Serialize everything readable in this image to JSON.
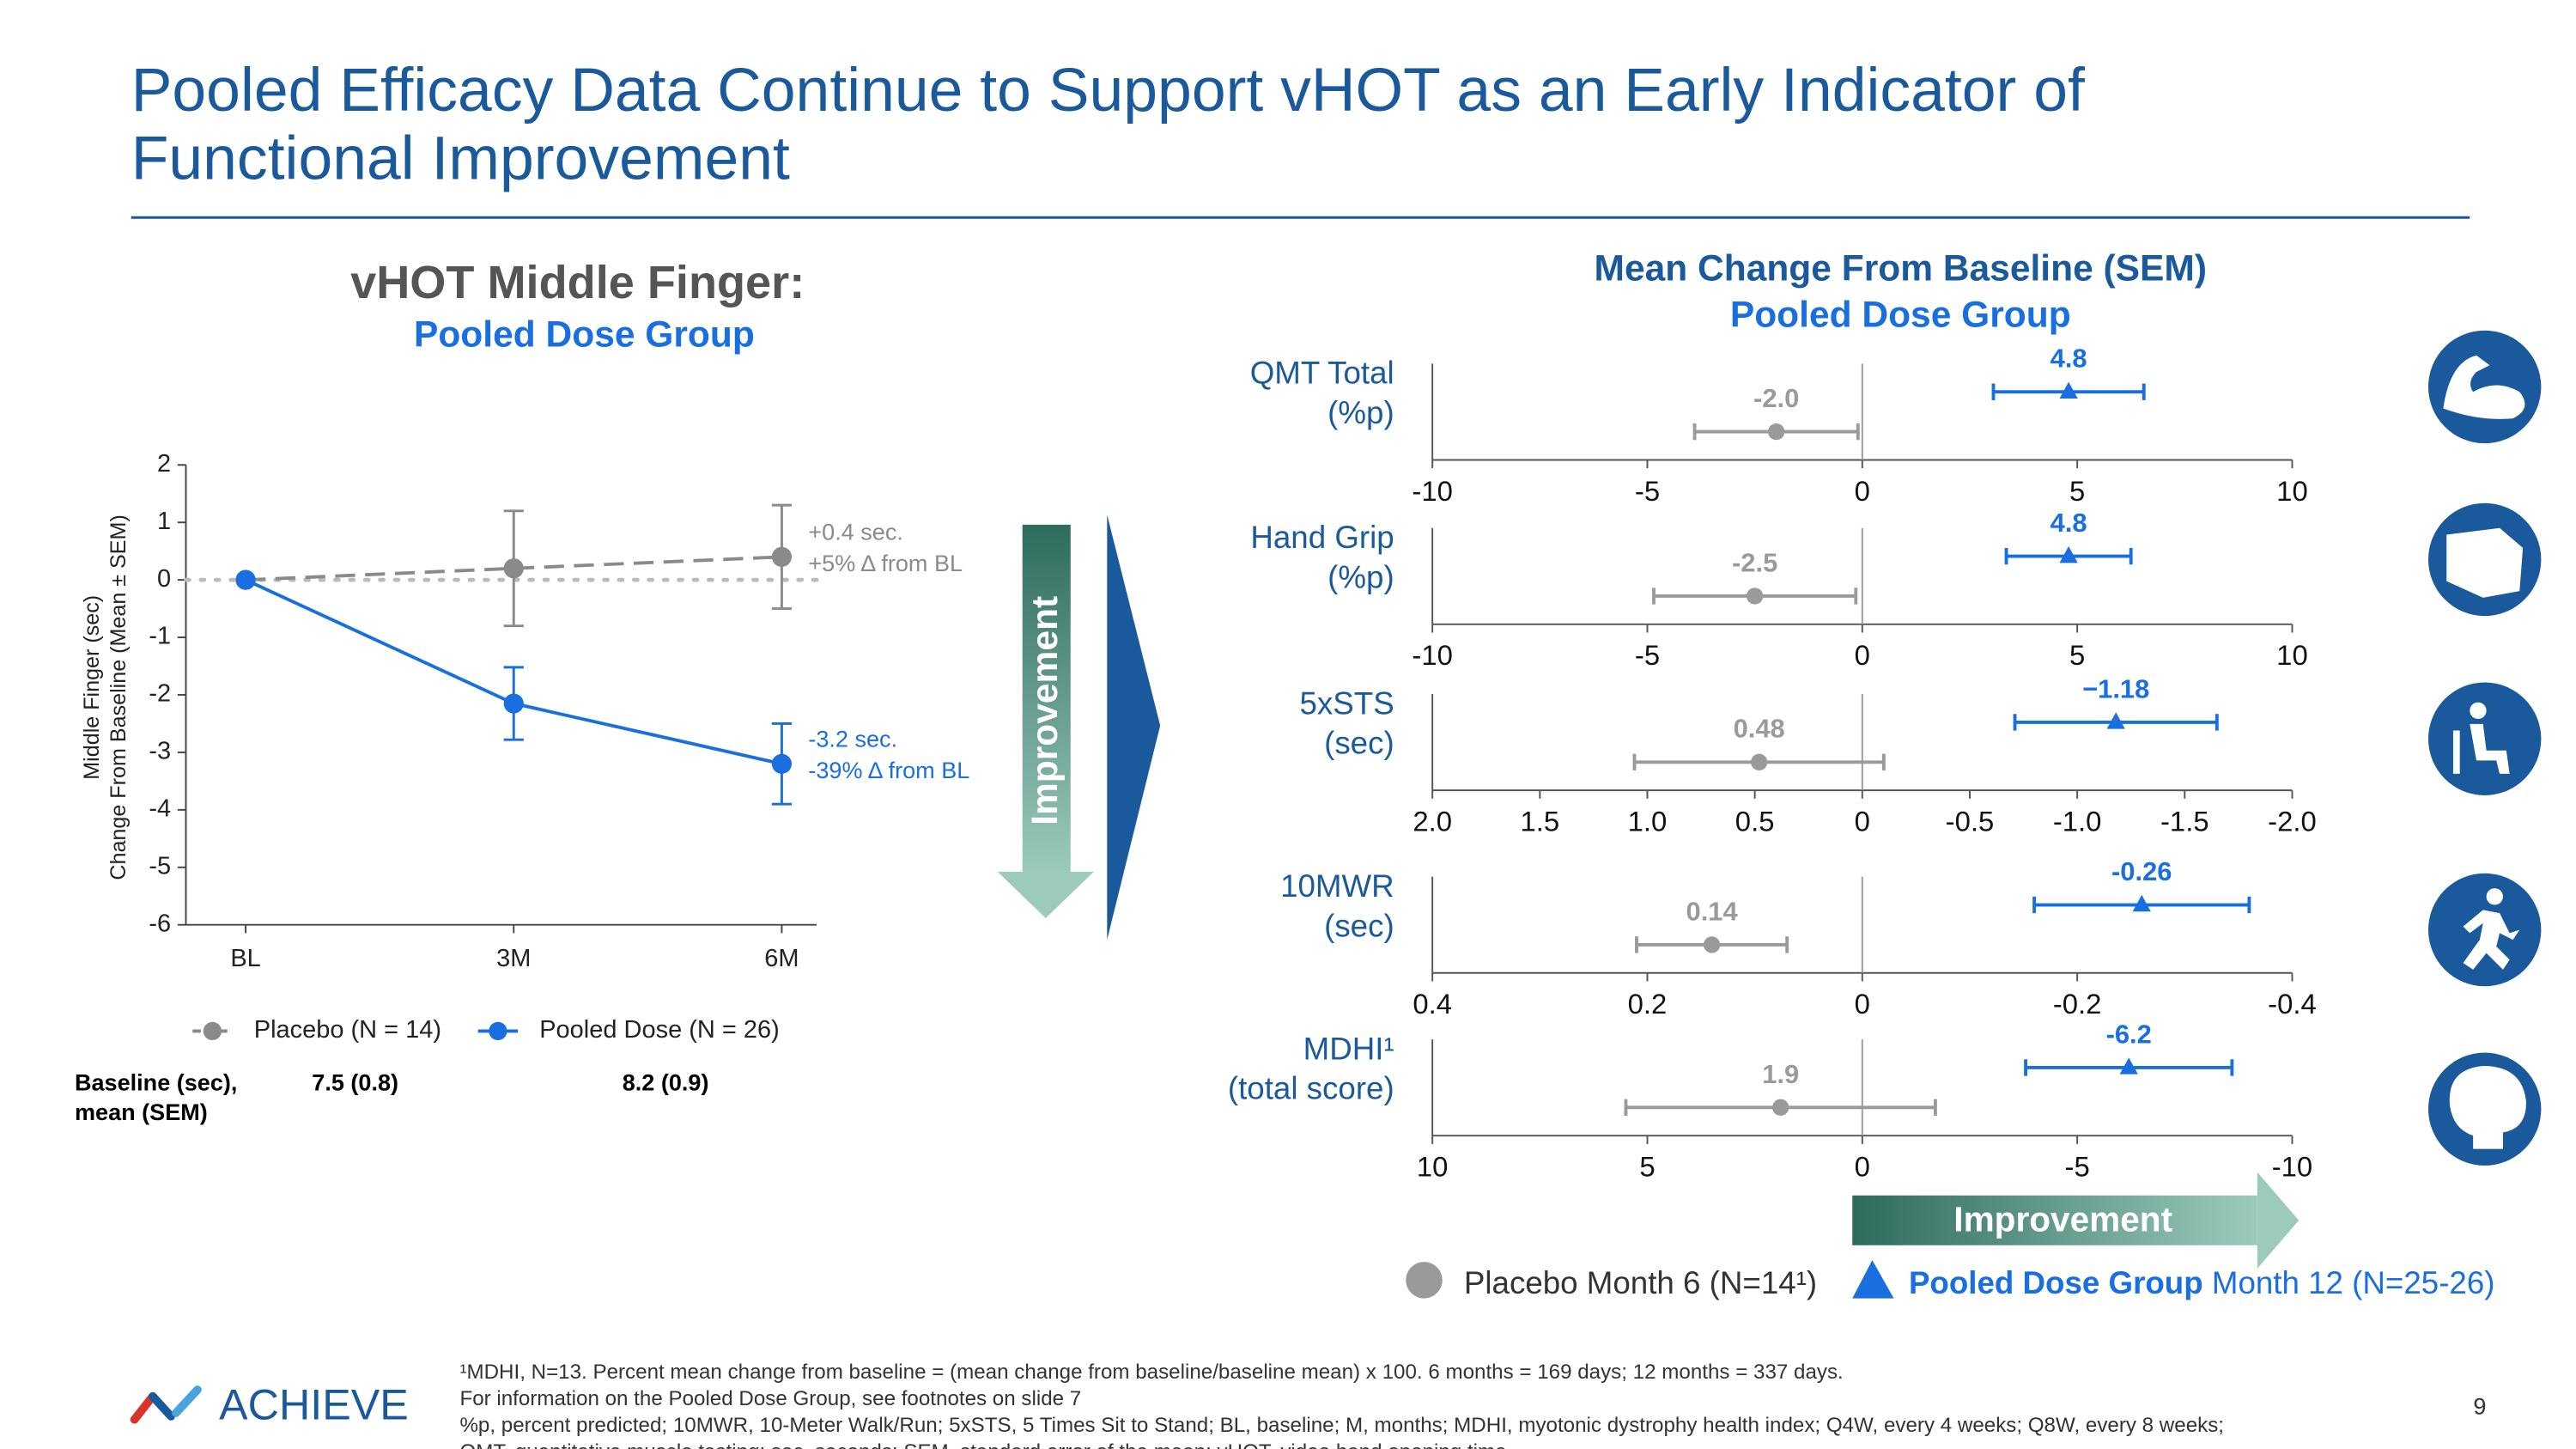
{
  "title": [
    "Pooled Efficacy Data Continue to Support vHOT as an Early Indicator of",
    "Functional Improvement"
  ],
  "chart_data": [
    {
      "type": "line",
      "title": "vHOT Middle Finger:",
      "subtitle": "Pooled Dose Group",
      "y_label": [
        "Middle Finger  (sec)",
        "Change From Baseline  (Mean ± SEM)"
      ],
      "categories": [
        "BL",
        "3M",
        "6M"
      ],
      "ylim": [
        -6,
        2
      ],
      "yticks": [
        -6,
        -5,
        -4,
        -3,
        -2,
        -1,
        0,
        1,
        2
      ],
      "series": [
        {
          "name": "Placebo (N = 14)",
          "color": "#8a8a8a",
          "line_style": "dashed",
          "values": [
            0,
            0.2,
            0.4
          ],
          "errors": [
            0,
            1.0,
            0.9
          ],
          "annotation": [
            "+0.4 sec.",
            "+5% Δ from BL"
          ]
        },
        {
          "name": "Pooled Dose (N = 26)",
          "color": "#1a6fe0",
          "line_style": "solid",
          "values": [
            0,
            -2.15,
            -3.2
          ],
          "errors": [
            0,
            0.63,
            0.7
          ],
          "annotation": [
            "-3.2 sec.",
            "-39% Δ from BL"
          ]
        }
      ],
      "baseline_table": {
        "label": [
          "Baseline (sec),",
          "mean (SEM)"
        ],
        "values": [
          "7.5 (0.8)",
          "8.2 (0.9)"
        ]
      },
      "arrow_label": "Improvement"
    },
    {
      "type": "forest",
      "title": "Mean Change From Baseline (SEM)",
      "subtitle": "Pooled Dose Group",
      "series": [
        {
          "name": "Placebo Month 6 (N=14¹)",
          "color": "#9a9a9a",
          "marker": "circle"
        },
        {
          "name": "Pooled Dose Group",
          "name_note": "Month 12 (N=25-26)",
          "color": "#1a6fe0",
          "marker": "triangle"
        }
      ],
      "arrow_label": "Improvement",
      "panels": [
        {
          "label": [
            "QMT Total",
            "(%p)"
          ],
          "xlim": [
            -10,
            10
          ],
          "xticks": [
            -10,
            -5,
            0,
            5,
            10
          ],
          "series": [
            {
              "values": [
                -2.0
              ],
              "errors": [
                1.9
              ],
              "value_labels": [
                "-2.0"
              ]
            },
            {
              "values": [
                4.8
              ],
              "errors": [
                1.75
              ]
            }
          ]
        },
        {
          "label": [
            "Hand Grip",
            "(%p)"
          ],
          "xlim": [
            -10,
            10
          ],
          "xticks": [
            -10,
            -5,
            0,
            5,
            10
          ],
          "series": [
            {
              "values": [
                -2.5
              ],
              "errors": [
                2.35
              ]
            },
            {
              "values": [
                4.8
              ],
              "errors": [
                1.45
              ]
            }
          ]
        },
        {
          "label": [
            "5xSTS",
            "(sec)"
          ],
          "xlim": [
            2,
            -2
          ],
          "xticks": [
            {
              "value": 2,
              "label": "2.0"
            },
            1.5,
            {
              "value": 1,
              "label": "1.0"
            },
            0.5,
            0,
            -0.5,
            {
              "value": -1,
              "label": "-1.0"
            },
            -1.5,
            {
              "value": -2,
              "label": "-2.0"
            }
          ],
          "series": [
            {
              "values": [
                0.48
              ],
              "errors": [
                0.58
              ]
            },
            {
              "values": [
                -1.18
              ],
              "errors": [
                0.47
              ],
              "value_labels": [
                "−1.18"
              ]
            }
          ]
        },
        {
          "label": [
            "10MWR",
            "(sec)"
          ],
          "xlim": [
            0.4,
            -0.4
          ],
          "xticks": [
            0.4,
            0.2,
            0,
            -0.2,
            -0.4
          ],
          "series": [
            {
              "values": [
                0.14
              ],
              "errors": [
                0.07
              ]
            },
            {
              "values": [
                -0.26
              ],
              "errors": [
                0.1
              ]
            }
          ]
        },
        {
          "label": [
            "MDHI¹",
            "(total score)"
          ],
          "xlim": [
            10,
            -10
          ],
          "xticks": [
            10,
            5,
            0,
            -5,
            -10
          ],
          "series": [
            {
              "values": [
                1.9
              ],
              "errors": [
                3.6
              ]
            },
            {
              "values": [
                -6.2
              ],
              "errors": [
                2.4
              ]
            }
          ]
        }
      ]
    }
  ],
  "logo": "ACHIEVE",
  "page_number": "9",
  "footnotes": [
    "¹MDHI, N=13. Percent mean change from baseline = (mean change from baseline/baseline mean) x 100. 6 months = 169 days; 12 months = 337 days.",
    "For information on the Pooled Dose Group, see footnotes on slide 7",
    "%p, percent predicted; 10MWR, 10-Meter Walk/Run; 5xSTS, 5 Times Sit to Stand; BL, baseline; M, months; MDHI, myotonic dystrophy health index; Q4W, every 4 weeks; Q8W, every 8 weeks;",
    "QMT, quantitative muscle testing; sec, seconds; SEM, standard error of the mean; vHOT, video hand opening time."
  ]
}
